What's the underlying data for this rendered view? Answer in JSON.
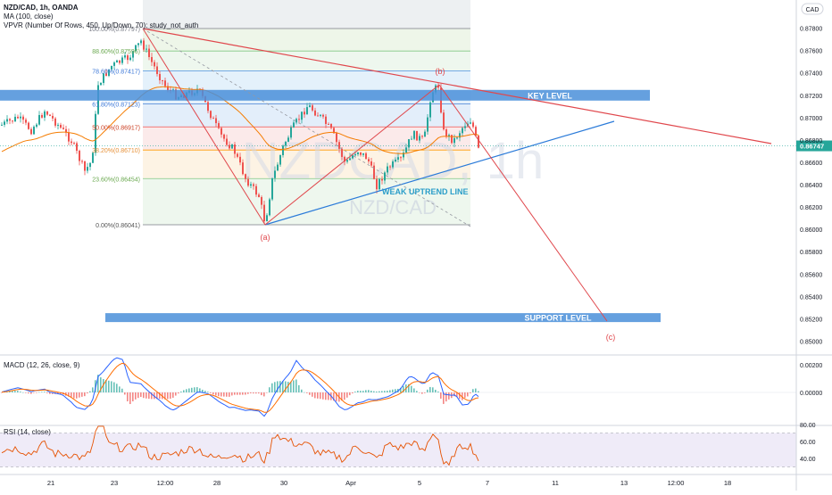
{
  "header": {
    "symbol_line": "NZD/CAD, 1h, OANDA",
    "ma_line": "MA (100, close)",
    "vpvr_line": "VPVR (Number Of Rows, 450, Up/Down, 70): study_not_auth"
  },
  "currency_badge": "CAD",
  "watermark": {
    "big": "NZDCAD, 1h",
    "small": "NZD/CAD"
  },
  "colors": {
    "bull": "#26a69a",
    "bear": "#ef5350",
    "ma": "#f57c00",
    "resistance": "#e0474c",
    "trend": "#2b7bd9",
    "zone": "#4a8fd9",
    "macd": "#2962ff",
    "signal": "#ff6d00",
    "rsi": "#e65100",
    "rsi_band": "#7e57c2"
  },
  "chart_data": [
    {
      "type": "candlestick",
      "title": "",
      "y_axis": {
        "ticks": [
          "0.87800",
          "0.87600",
          "0.87400",
          "0.87200",
          "0.87000",
          "0.86800",
          "0.86600",
          "0.86400",
          "0.86200",
          "0.86000",
          "0.85800",
          "0.85600",
          "0.85400",
          "0.85200",
          "0.85000"
        ],
        "ylim": [
          0.849,
          0.88
        ]
      },
      "x_axis": {
        "ticks": [
          "21",
          "23",
          "12:00",
          "28",
          "30",
          "Apr",
          "5",
          "7",
          "11",
          "13",
          "12:00",
          "18"
        ]
      },
      "last_price": "0.86747",
      "fibonacci": [
        {
          "label": "100.00%(0.87797)",
          "price": 0.87797
        },
        {
          "label": "88.60%(0.87596)",
          "price": 0.87596
        },
        {
          "label": "78.60%(0.87417)",
          "price": 0.87417
        },
        {
          "label": "61.80%(0.87123)",
          "price": 0.87123
        },
        {
          "label": "50.00%(0.86917)",
          "price": 0.86917
        },
        {
          "label": "38.20%(0.86710)",
          "price": 0.8671
        },
        {
          "label": "23.60%(0.86454)",
          "price": 0.86454
        },
        {
          "label": "0.00%(0.86041)",
          "price": 0.86041
        }
      ],
      "annotations": {
        "a": "(a)",
        "b": "(b)",
        "c": "(c)",
        "key_level": "KEY LEVEL",
        "support_level": "SUPPORT LEVEL",
        "weak_uptrend": "WEAK UPTREND LINE"
      },
      "key_level_price": 0.872,
      "support_level_price": 0.8521
    },
    {
      "type": "line",
      "title": "MACD (12, 26, close, 9)",
      "y_axis": {
        "ticks": [
          "0.00200",
          "0.00000"
        ]
      }
    },
    {
      "type": "line",
      "title": "RSI (14, close)",
      "y_axis": {
        "ticks": [
          "80.00",
          "60.00",
          "40.00"
        ]
      },
      "bands": [
        70,
        30
      ]
    }
  ]
}
